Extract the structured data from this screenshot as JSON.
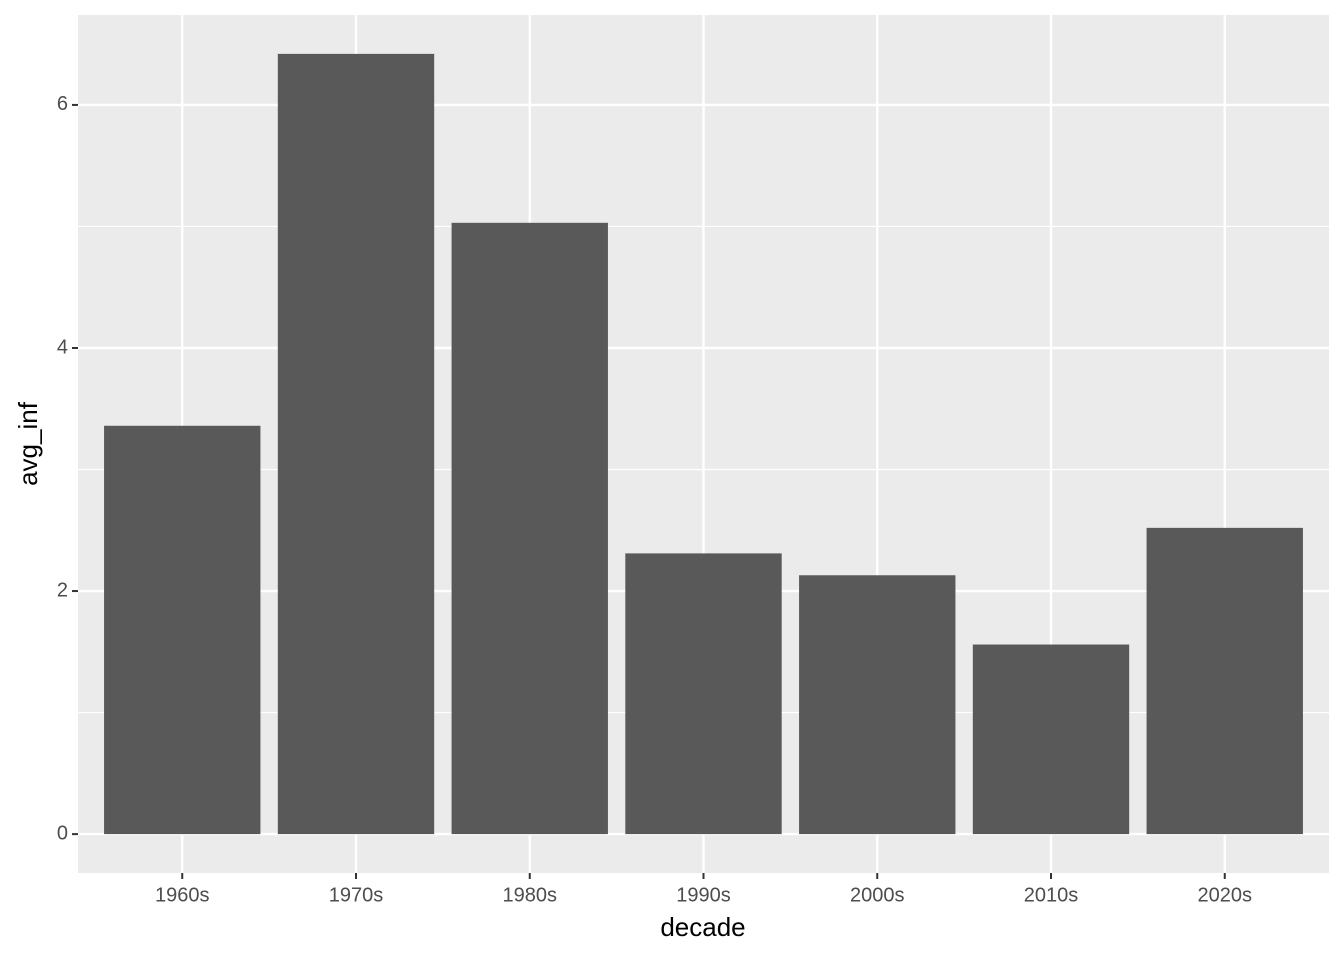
{
  "chart_data": {
    "type": "bar",
    "x_label": "decade",
    "y_label": "avg_inf",
    "categories": [
      "1960s",
      "1970s",
      "1980s",
      "1990s",
      "2000s",
      "2010s",
      "2020s"
    ],
    "values": [
      3.36,
      6.42,
      5.03,
      2.31,
      2.13,
      1.56,
      2.52
    ],
    "color": "#595959",
    "ylim": [
      -0.32,
      6.74
    ],
    "yticks": [
      0,
      2,
      4,
      6
    ],
    "y_minor_ticks": [
      1,
      3,
      5
    ],
    "grid": true
  }
}
